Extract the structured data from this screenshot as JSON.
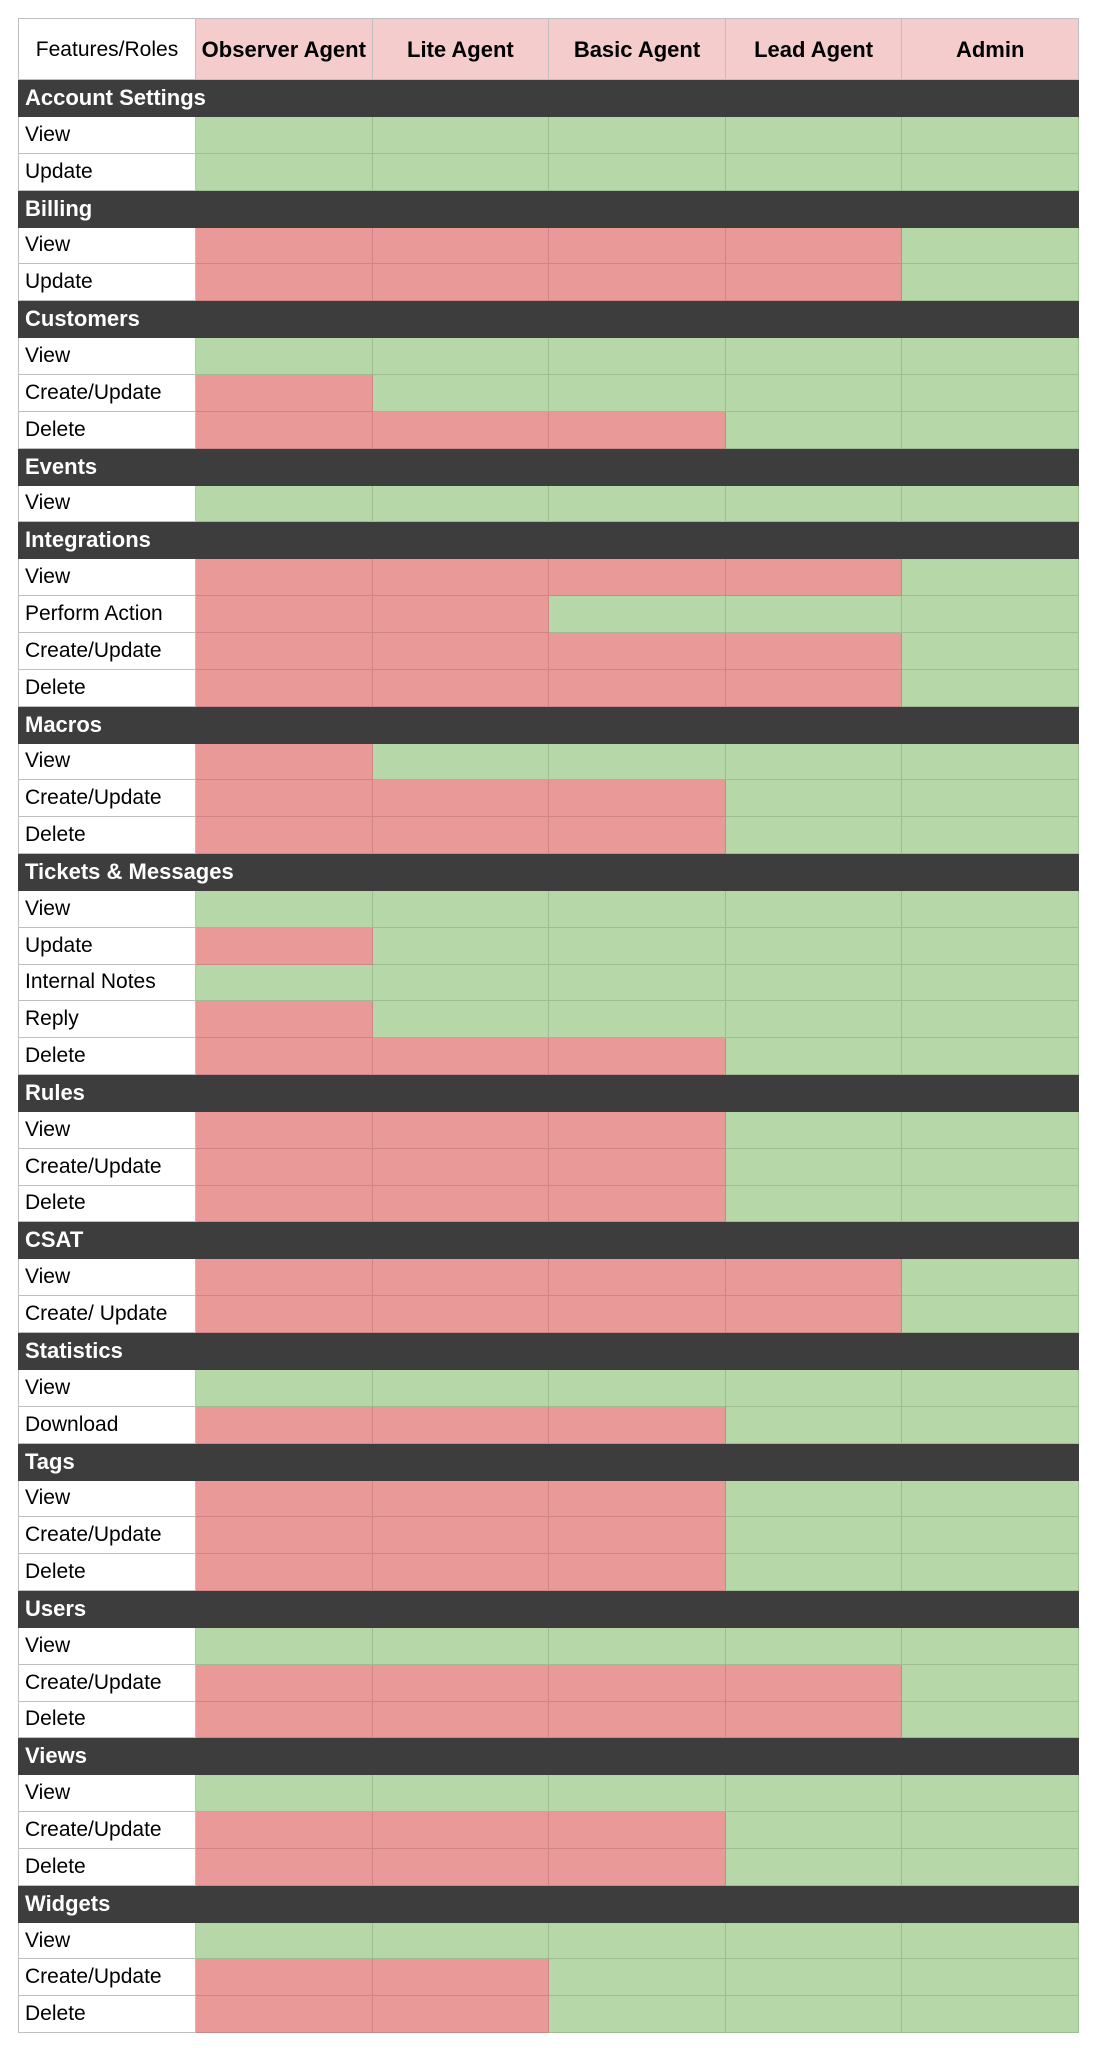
{
  "header": {
    "corner_label": "Features/Roles",
    "roles": [
      "Observer Agent",
      "Lite Agent",
      "Basic Agent",
      "Lead Agent",
      "Admin"
    ]
  },
  "legend_colors": {
    "allowed": "#b6d7a8",
    "denied": "#ea9999",
    "header_bg": "#f4cccc",
    "section_bg": "#3d3d3d"
  },
  "sections": [
    {
      "name": "Account Settings",
      "rows": [
        {
          "feature": "View",
          "access": [
            true,
            true,
            true,
            true,
            true
          ]
        },
        {
          "feature": "Update",
          "access": [
            true,
            true,
            true,
            true,
            true
          ]
        }
      ]
    },
    {
      "name": "Billing",
      "rows": [
        {
          "feature": "View",
          "access": [
            false,
            false,
            false,
            false,
            true
          ]
        },
        {
          "feature": "Update",
          "access": [
            false,
            false,
            false,
            false,
            true
          ]
        }
      ]
    },
    {
      "name": "Customers",
      "rows": [
        {
          "feature": "View",
          "access": [
            true,
            true,
            true,
            true,
            true
          ]
        },
        {
          "feature": "Create/Update",
          "access": [
            false,
            true,
            true,
            true,
            true
          ]
        },
        {
          "feature": "Delete",
          "access": [
            false,
            false,
            false,
            true,
            true
          ]
        }
      ]
    },
    {
      "name": "Events",
      "rows": [
        {
          "feature": "View",
          "access": [
            true,
            true,
            true,
            true,
            true
          ]
        }
      ]
    },
    {
      "name": "Integrations",
      "rows": [
        {
          "feature": "View",
          "access": [
            false,
            false,
            false,
            false,
            true
          ]
        },
        {
          "feature": "Perform Action",
          "access": [
            false,
            false,
            true,
            true,
            true
          ]
        },
        {
          "feature": "Create/Update",
          "access": [
            false,
            false,
            false,
            false,
            true
          ]
        },
        {
          "feature": "Delete",
          "access": [
            false,
            false,
            false,
            false,
            true
          ]
        }
      ]
    },
    {
      "name": "Macros",
      "rows": [
        {
          "feature": "View",
          "access": [
            false,
            true,
            true,
            true,
            true
          ]
        },
        {
          "feature": "Create/Update",
          "access": [
            false,
            false,
            false,
            true,
            true
          ]
        },
        {
          "feature": "Delete",
          "access": [
            false,
            false,
            false,
            true,
            true
          ]
        }
      ]
    },
    {
      "name": "Tickets & Messages",
      "rows": [
        {
          "feature": "View",
          "access": [
            true,
            true,
            true,
            true,
            true
          ]
        },
        {
          "feature": "Update",
          "access": [
            false,
            true,
            true,
            true,
            true
          ]
        },
        {
          "feature": "Internal Notes",
          "access": [
            true,
            true,
            true,
            true,
            true
          ]
        },
        {
          "feature": "Reply",
          "access": [
            false,
            true,
            true,
            true,
            true
          ]
        },
        {
          "feature": "Delete",
          "access": [
            false,
            false,
            false,
            true,
            true
          ]
        }
      ]
    },
    {
      "name": "Rules",
      "rows": [
        {
          "feature": "View",
          "access": [
            false,
            false,
            false,
            true,
            true
          ]
        },
        {
          "feature": "Create/Update",
          "access": [
            false,
            false,
            false,
            true,
            true
          ]
        },
        {
          "feature": "Delete",
          "access": [
            false,
            false,
            false,
            true,
            true
          ]
        }
      ]
    },
    {
      "name": "CSAT",
      "rows": [
        {
          "feature": "View",
          "access": [
            false,
            false,
            false,
            false,
            true
          ]
        },
        {
          "feature": "Create/ Update",
          "access": [
            false,
            false,
            false,
            false,
            true
          ]
        }
      ]
    },
    {
      "name": "Statistics",
      "rows": [
        {
          "feature": "View",
          "access": [
            true,
            true,
            true,
            true,
            true
          ]
        },
        {
          "feature": "Download",
          "access": [
            false,
            false,
            false,
            true,
            true
          ]
        }
      ]
    },
    {
      "name": "Tags",
      "rows": [
        {
          "feature": "View",
          "access": [
            false,
            false,
            false,
            true,
            true
          ]
        },
        {
          "feature": "Create/Update",
          "access": [
            false,
            false,
            false,
            true,
            true
          ]
        },
        {
          "feature": "Delete",
          "access": [
            false,
            false,
            false,
            true,
            true
          ]
        }
      ]
    },
    {
      "name": "Users",
      "rows": [
        {
          "feature": "View",
          "access": [
            true,
            true,
            true,
            true,
            true
          ]
        },
        {
          "feature": "Create/Update",
          "access": [
            false,
            false,
            false,
            false,
            true
          ]
        },
        {
          "feature": "Delete",
          "access": [
            false,
            false,
            false,
            false,
            true
          ]
        }
      ]
    },
    {
      "name": "Views",
      "rows": [
        {
          "feature": "View",
          "access": [
            true,
            true,
            true,
            true,
            true
          ]
        },
        {
          "feature": "Create/Update",
          "access": [
            false,
            false,
            false,
            true,
            true
          ]
        },
        {
          "feature": "Delete",
          "access": [
            false,
            false,
            false,
            true,
            true
          ]
        }
      ]
    },
    {
      "name": "Widgets",
      "rows": [
        {
          "feature": "View",
          "access": [
            true,
            true,
            true,
            true,
            true
          ]
        },
        {
          "feature": "Create/Update",
          "access": [
            false,
            false,
            true,
            true,
            true
          ]
        },
        {
          "feature": "Delete",
          "access": [
            false,
            false,
            true,
            true,
            true
          ]
        }
      ]
    }
  ]
}
